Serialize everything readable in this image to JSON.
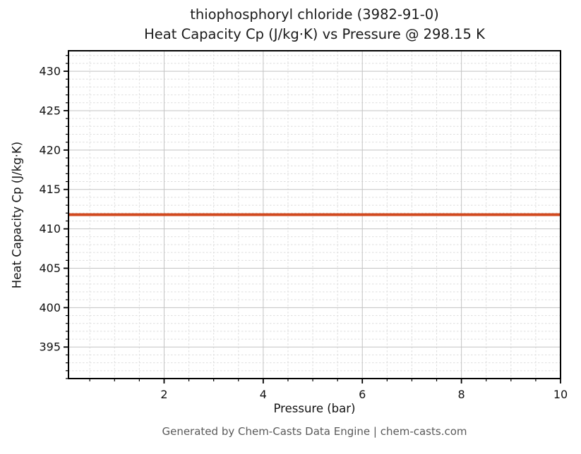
{
  "figure": {
    "title_line1": "thiophosphoryl chloride (3982-91-0)",
    "title_line2": "Heat Capacity Cp (J/kg·K) vs Pressure @ 298.15 K",
    "footer": "Generated by Chem-Casts Data Engine | chem-casts.com"
  },
  "chart_data": {
    "type": "line",
    "title": "thiophosphoryl chloride (3982-91-0) — Heat Capacity Cp (J/kg·K) vs Pressure @ 298.15 K",
    "xlabel": "Pressure (bar)",
    "ylabel": "Heat Capacity Cp (J/kg·K)",
    "xlim": [
      0.07,
      10
    ],
    "ylim": [
      391.0,
      432.6
    ],
    "xticks": [
      2,
      4,
      6,
      8,
      10
    ],
    "yticks": [
      395,
      400,
      405,
      410,
      415,
      420,
      425,
      430
    ],
    "x_minor_step": 0.5,
    "y_minor_step": 1,
    "grid": "major-solid + minor-dashed",
    "legend": "none",
    "series": [
      {
        "name": "Heat Capacity Cp at 298.15 K",
        "x": [
          0.07,
          10
        ],
        "y": [
          411.8,
          411.8
        ],
        "constant_value": 411.8,
        "color": "#d1491f",
        "linewidth": 4
      }
    ]
  },
  "colors": {
    "line": "#d1491f",
    "major_grid": "#c3c3c3",
    "minor_grid": "#dedede",
    "spine": "#000000",
    "tick": "#000000",
    "title_text": "#1a1a1a",
    "footer_text": "#5a5a5a",
    "background": "#ffffff"
  }
}
